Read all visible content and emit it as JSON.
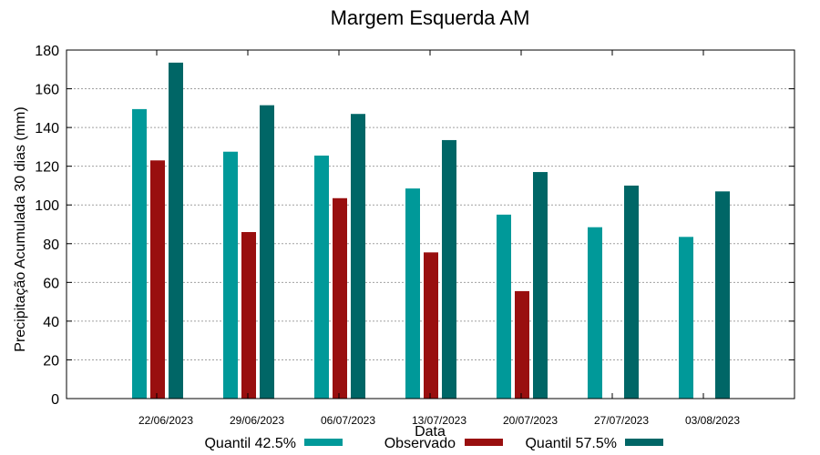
{
  "chart_data": {
    "type": "bar",
    "title": "Margem Esquerda AM",
    "xlabel": "Data",
    "ylabel": "Precipitação Acumulada 30 dias (mm)",
    "ylim": [
      0,
      180
    ],
    "yticks": [
      0,
      20,
      40,
      60,
      80,
      100,
      120,
      140,
      160,
      180
    ],
    "grid": true,
    "legend_position": "bottom",
    "categories": [
      "22/06/2023",
      "29/06/2023",
      "06/07/2023",
      "13/07/2023",
      "20/07/2023",
      "27/07/2023",
      "03/08/2023"
    ],
    "series": [
      {
        "name": "Quantil 42.5%",
        "color": "#009999",
        "values": [
          149.5,
          127.5,
          125.5,
          108.5,
          95,
          88.5,
          83.5
        ]
      },
      {
        "name": "Observado",
        "color": "#990f0f",
        "values": [
          123,
          86,
          103.5,
          75.5,
          55.5,
          null,
          null
        ]
      },
      {
        "name": "Quantil 57.5%",
        "color": "#006666",
        "values": [
          173.5,
          151.5,
          147,
          133.5,
          117,
          110,
          107
        ]
      }
    ]
  }
}
